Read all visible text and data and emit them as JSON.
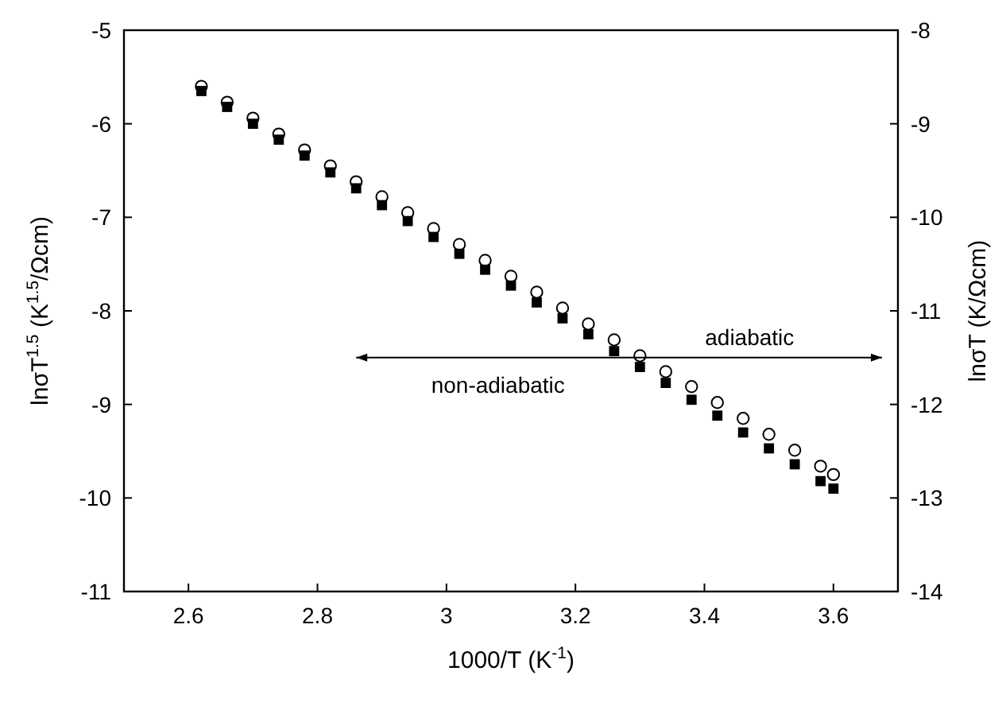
{
  "chart_data": {
    "type": "scatter",
    "xlabel": "1000/T (K$^{-1}$)",
    "ylabel": "lnσT$^{1.5}$ (K$^{1.5}$/Ωcm)",
    "y2label": "lnσT (K/Ωcm)",
    "xlim": [
      2.5,
      3.7
    ],
    "xticks": [
      2.6,
      2.8,
      3.0,
      3.2,
      3.4,
      3.6
    ],
    "ylim": [
      -11,
      -5
    ],
    "yticks": [
      -11,
      -10,
      -9,
      -8,
      -7,
      -6,
      -5
    ],
    "y2lim": [
      -14,
      -8
    ],
    "y2ticks": [
      -14,
      -13,
      -12,
      -11,
      -10,
      -9,
      -8
    ],
    "x": [
      2.62,
      2.66,
      2.7,
      2.74,
      2.78,
      2.82,
      2.86,
      2.9,
      2.94,
      2.98,
      3.02,
      3.06,
      3.1,
      3.14,
      3.18,
      3.22,
      3.26,
      3.3,
      3.34,
      3.38,
      3.42,
      3.46,
      3.5,
      3.54,
      3.58,
      3.6
    ],
    "series": [
      {
        "color": "#000000",
        "marker": "square",
        "values": [
          -5.65,
          -5.82,
          -6.0,
          -6.17,
          -6.34,
          -6.52,
          -6.69,
          -6.87,
          -7.04,
          -7.21,
          -7.39,
          -7.56,
          -7.73,
          -7.91,
          -8.08,
          -8.25,
          -8.43,
          -8.6,
          -8.77,
          -8.95,
          -9.12,
          -9.3,
          -9.47,
          -9.64,
          -9.82,
          -9.9
        ]
      },
      {
        "color": "#000000",
        "marker": "circle",
        "axis": "y2",
        "values": [
          -8.6,
          -8.77,
          -8.94,
          -9.11,
          -9.28,
          -9.45,
          -9.62,
          -9.78,
          -9.95,
          -10.12,
          -10.29,
          -10.46,
          -10.63,
          -10.8,
          -10.97,
          -11.14,
          -11.31,
          -11.48,
          -11.65,
          -11.81,
          -11.98,
          -12.15,
          -12.32,
          -12.49,
          -12.66,
          -12.75
        ]
      }
    ],
    "annotations": [
      "non-adiabatic",
      "adiabatic"
    ]
  }
}
